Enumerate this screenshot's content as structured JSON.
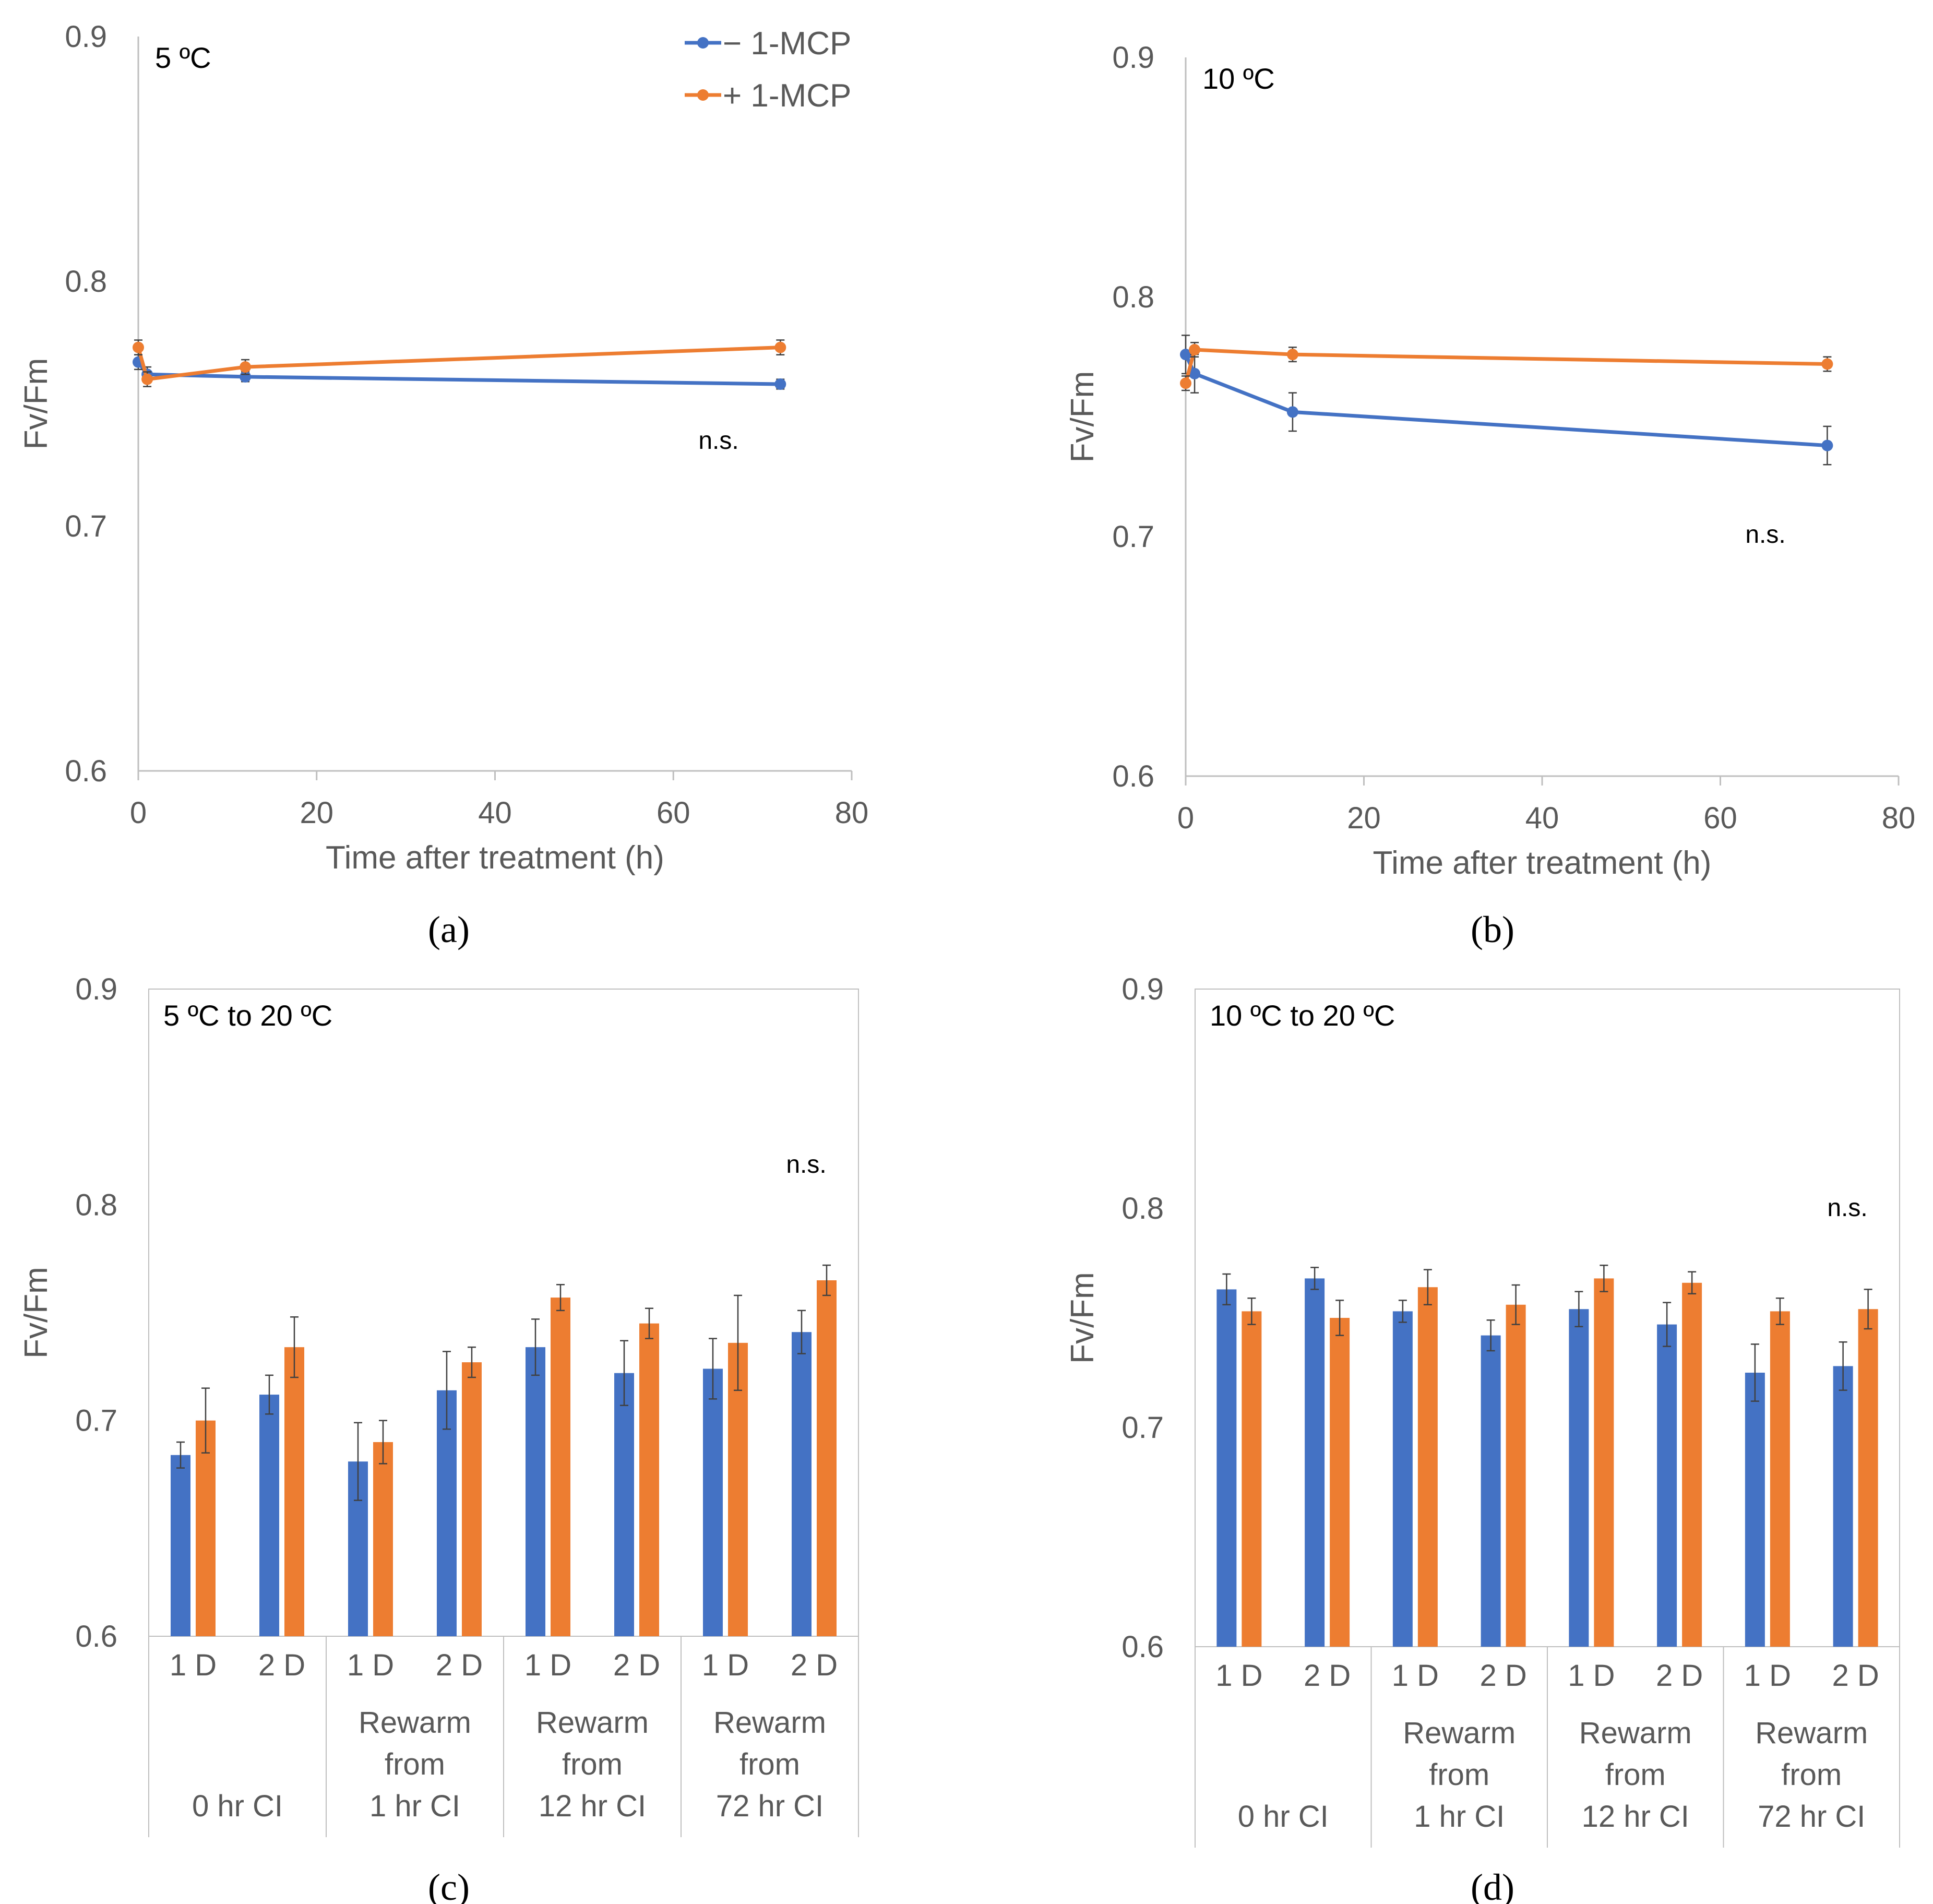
{
  "colors": {
    "minus": "#4472C4",
    "plus": "#ED7D31",
    "axis": "#BFBFBF",
    "text": "#595959",
    "error": "#404040"
  },
  "legend": [
    {
      "label": "− 1-MCP",
      "color": "#4472C4"
    },
    {
      "label": "+ 1-MCP",
      "color": "#ED7D31"
    }
  ],
  "chart_data": [
    {
      "id": "a",
      "type": "line",
      "caption": "(a)",
      "title": "5 ºC",
      "xlabel": "Time after treatment (h)",
      "ylabel": "Fv/Fm",
      "xlim": [
        0,
        80
      ],
      "ylim": [
        0.6,
        0.9
      ],
      "xticks": [
        "0",
        "20",
        "40",
        "60",
        "80"
      ],
      "yticks": [
        "0.6",
        "0.7",
        "0.8",
        "0.9"
      ],
      "annotation": "n.s.",
      "x": [
        0,
        1,
        12,
        72
      ],
      "series": [
        {
          "name": "− 1-MCP",
          "values": [
            0.767,
            0.762,
            0.761,
            0.758
          ],
          "errors": [
            0.003,
            0.003,
            0.002,
            0.002
          ]
        },
        {
          "name": "+ 1-MCP",
          "values": [
            0.773,
            0.76,
            0.765,
            0.773
          ],
          "errors": [
            0.003,
            0.003,
            0.003,
            0.003
          ]
        }
      ]
    },
    {
      "id": "b",
      "type": "line",
      "caption": "(b)",
      "title": "10 ºC",
      "xlabel": "Time after treatment (h)",
      "ylabel": "Fv/Fm",
      "xlim": [
        0,
        80
      ],
      "ylim": [
        0.6,
        0.9
      ],
      "xticks": [
        "0",
        "20",
        "40",
        "60",
        "80"
      ],
      "yticks": [
        "0.6",
        "0.7",
        "0.8",
        "0.9"
      ],
      "annotation": "n.s.",
      "x": [
        0,
        1,
        12,
        72
      ],
      "series": [
        {
          "name": "− 1-MCP",
          "values": [
            0.776,
            0.768,
            0.752,
            0.738
          ],
          "errors": [
            0.008,
            0.008,
            0.008,
            0.008
          ]
        },
        {
          "name": "+ 1-MCP",
          "values": [
            0.764,
            0.778,
            0.776,
            0.772
          ],
          "errors": [
            0.003,
            0.003,
            0.003,
            0.003
          ]
        }
      ]
    },
    {
      "id": "c",
      "type": "bar",
      "caption": "(c)",
      "title": "5 ºC to 20 ºC",
      "ylabel": "Fv/Fm",
      "ylim": [
        0.6,
        0.9
      ],
      "yticks": [
        "0.6",
        "0.7",
        "0.8",
        "0.9"
      ],
      "annotation": "n.s.",
      "categories": [
        "1 D",
        "2 D",
        "1 D",
        "2 D",
        "1 D",
        "2 D",
        "1 D",
        "2 D"
      ],
      "groups": [
        {
          "label": [
            "",
            "",
            "0 hr CI"
          ]
        },
        {
          "label": [
            "Rewarm",
            "from",
            "1 hr CI"
          ]
        },
        {
          "label": [
            "Rewarm",
            "from",
            "12 hr CI"
          ]
        },
        {
          "label": [
            "Rewarm",
            "from",
            "72 hr CI"
          ]
        }
      ],
      "series": [
        {
          "name": "− 1-MCP",
          "values": [
            0.684,
            0.712,
            0.681,
            0.714,
            0.734,
            0.722,
            0.724,
            0.741
          ],
          "errors": [
            0.006,
            0.009,
            0.018,
            0.018,
            0.013,
            0.015,
            0.014,
            0.01
          ]
        },
        {
          "name": "+ 1-MCP",
          "values": [
            0.7,
            0.734,
            0.69,
            0.727,
            0.757,
            0.745,
            0.736,
            0.765
          ],
          "errors": [
            0.015,
            0.014,
            0.01,
            0.007,
            0.006,
            0.007,
            0.022,
            0.007
          ]
        }
      ]
    },
    {
      "id": "d",
      "type": "bar",
      "caption": "(d)",
      "title": "10 ºC to 20 ºC",
      "ylabel": "Fv/Fm",
      "ylim": [
        0.6,
        0.9
      ],
      "yticks": [
        "0.6",
        "0.7",
        "0.8",
        "0.9"
      ],
      "annotation": "n.s.",
      "categories": [
        "1 D",
        "2 D",
        "1 D",
        "2 D",
        "1 D",
        "2 D",
        "1 D",
        "2 D"
      ],
      "groups": [
        {
          "label": [
            "",
            "",
            "0 hr CI"
          ]
        },
        {
          "label": [
            "Rewarm",
            "from",
            "1 hr CI"
          ]
        },
        {
          "label": [
            "Rewarm",
            "from",
            "12 hr CI"
          ]
        },
        {
          "label": [
            "Rewarm",
            "from",
            "72 hr CI"
          ]
        }
      ],
      "series": [
        {
          "name": "− 1-MCP",
          "values": [
            0.763,
            0.768,
            0.753,
            0.742,
            0.754,
            0.747,
            0.725,
            0.728
          ],
          "errors": [
            0.007,
            0.005,
            0.005,
            0.007,
            0.008,
            0.01,
            0.013,
            0.011
          ]
        },
        {
          "name": "+ 1-MCP",
          "values": [
            0.753,
            0.75,
            0.764,
            0.756,
            0.768,
            0.766,
            0.753,
            0.754
          ],
          "errors": [
            0.006,
            0.008,
            0.008,
            0.009,
            0.006,
            0.005,
            0.006,
            0.009
          ]
        }
      ]
    }
  ]
}
